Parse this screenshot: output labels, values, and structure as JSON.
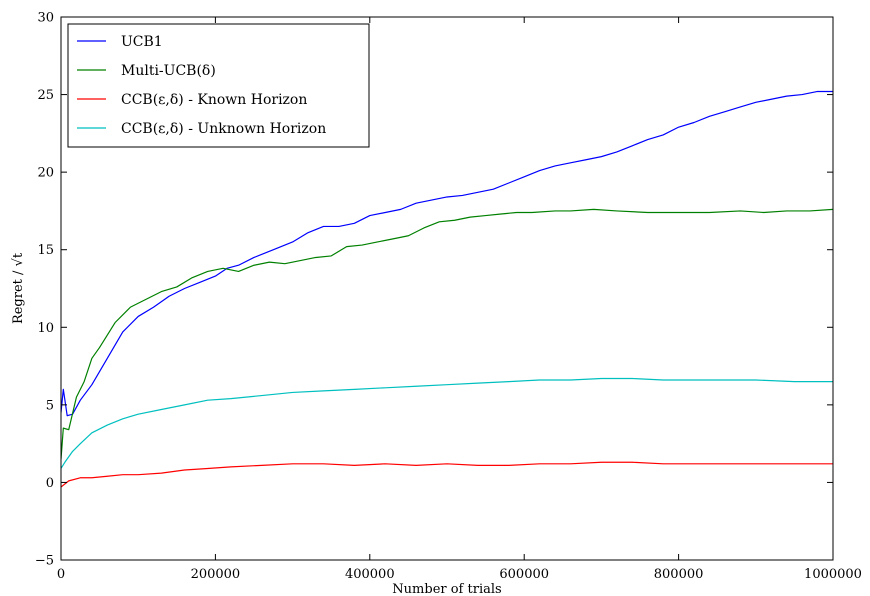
{
  "chart_data": {
    "type": "line",
    "xlabel": "Number of trials",
    "ylabel": "Regret / √t",
    "xlim": [
      0,
      1000000
    ],
    "ylim": [
      -5,
      30
    ],
    "x_ticks": [
      0,
      200000,
      400000,
      600000,
      800000,
      1000000
    ],
    "x_tick_labels": [
      "0",
      "200000",
      "400000",
      "600000",
      "800000",
      "1000000"
    ],
    "y_ticks": [
      -5,
      0,
      5,
      10,
      15,
      20,
      25,
      30
    ],
    "y_tick_labels": [
      "−5",
      "0",
      "5",
      "10",
      "15",
      "20",
      "25",
      "30"
    ],
    "grid": false,
    "legend_position": "top-left",
    "series": [
      {
        "name": "UCB1",
        "color": "#0000ff",
        "points": [
          [
            0,
            4.5
          ],
          [
            3000,
            6.0
          ],
          [
            8000,
            4.3
          ],
          [
            15000,
            4.4
          ],
          [
            25000,
            5.3
          ],
          [
            40000,
            6.3
          ],
          [
            60000,
            8.0
          ],
          [
            80000,
            9.7
          ],
          [
            100000,
            10.7
          ],
          [
            120000,
            11.3
          ],
          [
            140000,
            12.0
          ],
          [
            160000,
            12.5
          ],
          [
            180000,
            12.9
          ],
          [
            200000,
            13.3
          ],
          [
            215000,
            13.8
          ],
          [
            230000,
            14.0
          ],
          [
            250000,
            14.5
          ],
          [
            280000,
            15.1
          ],
          [
            300000,
            15.5
          ],
          [
            320000,
            16.1
          ],
          [
            340000,
            16.5
          ],
          [
            360000,
            16.5
          ],
          [
            380000,
            16.7
          ],
          [
            400000,
            17.2
          ],
          [
            420000,
            17.4
          ],
          [
            440000,
            17.6
          ],
          [
            460000,
            18.0
          ],
          [
            480000,
            18.2
          ],
          [
            500000,
            18.4
          ],
          [
            520000,
            18.5
          ],
          [
            540000,
            18.7
          ],
          [
            560000,
            18.9
          ],
          [
            580000,
            19.3
          ],
          [
            600000,
            19.7
          ],
          [
            620000,
            20.1
          ],
          [
            640000,
            20.4
          ],
          [
            660000,
            20.6
          ],
          [
            680000,
            20.8
          ],
          [
            700000,
            21.0
          ],
          [
            720000,
            21.3
          ],
          [
            740000,
            21.7
          ],
          [
            760000,
            22.1
          ],
          [
            780000,
            22.4
          ],
          [
            800000,
            22.9
          ],
          [
            820000,
            23.2
          ],
          [
            840000,
            23.6
          ],
          [
            860000,
            23.9
          ],
          [
            880000,
            24.2
          ],
          [
            900000,
            24.5
          ],
          [
            920000,
            24.7
          ],
          [
            940000,
            24.9
          ],
          [
            960000,
            25.0
          ],
          [
            980000,
            25.2
          ],
          [
            1000000,
            25.2
          ]
        ]
      },
      {
        "name": "Multi-UCB(δ)",
        "color": "#008000",
        "points": [
          [
            0,
            1.5
          ],
          [
            3000,
            3.5
          ],
          [
            10000,
            3.4
          ],
          [
            20000,
            5.5
          ],
          [
            30000,
            6.5
          ],
          [
            40000,
            8.0
          ],
          [
            50000,
            8.7
          ],
          [
            70000,
            10.3
          ],
          [
            90000,
            11.3
          ],
          [
            110000,
            11.8
          ],
          [
            130000,
            12.3
          ],
          [
            150000,
            12.6
          ],
          [
            170000,
            13.2
          ],
          [
            190000,
            13.6
          ],
          [
            210000,
            13.8
          ],
          [
            230000,
            13.6
          ],
          [
            250000,
            14.0
          ],
          [
            270000,
            14.2
          ],
          [
            290000,
            14.1
          ],
          [
            310000,
            14.3
          ],
          [
            330000,
            14.5
          ],
          [
            350000,
            14.6
          ],
          [
            370000,
            15.2
          ],
          [
            390000,
            15.3
          ],
          [
            410000,
            15.5
          ],
          [
            430000,
            15.7
          ],
          [
            450000,
            15.9
          ],
          [
            470000,
            16.4
          ],
          [
            490000,
            16.8
          ],
          [
            510000,
            16.9
          ],
          [
            530000,
            17.1
          ],
          [
            550000,
            17.2
          ],
          [
            570000,
            17.3
          ],
          [
            590000,
            17.4
          ],
          [
            610000,
            17.4
          ],
          [
            640000,
            17.5
          ],
          [
            660000,
            17.5
          ],
          [
            690000,
            17.6
          ],
          [
            720000,
            17.5
          ],
          [
            760000,
            17.4
          ],
          [
            800000,
            17.4
          ],
          [
            840000,
            17.4
          ],
          [
            880000,
            17.5
          ],
          [
            910000,
            17.4
          ],
          [
            940000,
            17.5
          ],
          [
            970000,
            17.5
          ],
          [
            1000000,
            17.6
          ]
        ]
      },
      {
        "name": "CCB(ε,δ) - Known Horizon",
        "color": "#ff0000",
        "points": [
          [
            0,
            -0.3
          ],
          [
            10000,
            0.1
          ],
          [
            25000,
            0.3
          ],
          [
            40000,
            0.3
          ],
          [
            60000,
            0.4
          ],
          [
            80000,
            0.5
          ],
          [
            100000,
            0.5
          ],
          [
            130000,
            0.6
          ],
          [
            160000,
            0.8
          ],
          [
            190000,
            0.9
          ],
          [
            220000,
            1.0
          ],
          [
            260000,
            1.1
          ],
          [
            300000,
            1.2
          ],
          [
            340000,
            1.2
          ],
          [
            380000,
            1.1
          ],
          [
            420000,
            1.2
          ],
          [
            460000,
            1.1
          ],
          [
            500000,
            1.2
          ],
          [
            540000,
            1.1
          ],
          [
            580000,
            1.1
          ],
          [
            620000,
            1.2
          ],
          [
            660000,
            1.2
          ],
          [
            700000,
            1.3
          ],
          [
            740000,
            1.3
          ],
          [
            780000,
            1.2
          ],
          [
            820000,
            1.2
          ],
          [
            860000,
            1.2
          ],
          [
            900000,
            1.2
          ],
          [
            950000,
            1.2
          ],
          [
            1000000,
            1.2
          ]
        ]
      },
      {
        "name": "CCB(ε,δ) - Unknown Horizon",
        "color": "#00bfbf",
        "points": [
          [
            0,
            0.9
          ],
          [
            5000,
            1.3
          ],
          [
            15000,
            2.0
          ],
          [
            25000,
            2.5
          ],
          [
            40000,
            3.2
          ],
          [
            60000,
            3.7
          ],
          [
            80000,
            4.1
          ],
          [
            100000,
            4.4
          ],
          [
            130000,
            4.7
          ],
          [
            160000,
            5.0
          ],
          [
            190000,
            5.3
          ],
          [
            220000,
            5.4
          ],
          [
            260000,
            5.6
          ],
          [
            300000,
            5.8
          ],
          [
            340000,
            5.9
          ],
          [
            380000,
            6.0
          ],
          [
            420000,
            6.1
          ],
          [
            460000,
            6.2
          ],
          [
            500000,
            6.3
          ],
          [
            540000,
            6.4
          ],
          [
            580000,
            6.5
          ],
          [
            620000,
            6.6
          ],
          [
            660000,
            6.6
          ],
          [
            700000,
            6.7
          ],
          [
            740000,
            6.7
          ],
          [
            780000,
            6.6
          ],
          [
            820000,
            6.6
          ],
          [
            860000,
            6.6
          ],
          [
            900000,
            6.6
          ],
          [
            950000,
            6.5
          ],
          [
            1000000,
            6.5
          ]
        ]
      }
    ]
  }
}
